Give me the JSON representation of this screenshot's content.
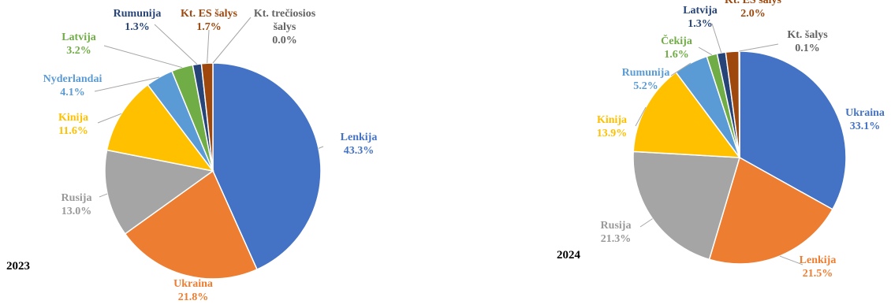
{
  "chart_data": [
    {
      "type": "pie",
      "title": "2023",
      "slices": [
        {
          "label": "Lenkija",
          "value": 43.3,
          "display": "43.3%",
          "color": "#4472C4"
        },
        {
          "label": "Ukraina",
          "value": 21.8,
          "display": "21.8%",
          "color": "#ED7D31"
        },
        {
          "label": "Rusija",
          "value": 13.0,
          "display": "13.0%",
          "color": "#A5A5A5"
        },
        {
          "label": "Kinija",
          "value": 11.6,
          "display": "11.6%",
          "color": "#FFC000"
        },
        {
          "label": "Nyderlandai",
          "value": 4.1,
          "display": "4.1%",
          "color": "#5B9BD5"
        },
        {
          "label": "Latvija",
          "value": 3.2,
          "display": "3.2%",
          "color": "#70AD47"
        },
        {
          "label": "Rumunija",
          "value": 1.3,
          "display": "1.3%",
          "color": "#264478"
        },
        {
          "label": "Kt. ES šalys",
          "value": 1.7,
          "display": "1.7%",
          "color": "#9E480E"
        },
        {
          "label": "Kt. trečiosios šalys",
          "value": 0.0,
          "display": "0.0%",
          "color": "#636363"
        }
      ]
    },
    {
      "type": "pie",
      "title": "2024",
      "slices": [
        {
          "label": "Ukraina",
          "value": 33.1,
          "display": "33.1%",
          "color": "#4472C4"
        },
        {
          "label": "Lenkija",
          "value": 21.5,
          "display": "21.5%",
          "color": "#ED7D31"
        },
        {
          "label": "Rusija",
          "value": 21.3,
          "display": "21.3%",
          "color": "#A5A5A5"
        },
        {
          "label": "Kinija",
          "value": 13.9,
          "display": "13.9%",
          "color": "#FFC000"
        },
        {
          "label": "Rumunija",
          "value": 5.2,
          "display": "5.2%",
          "color": "#5B9BD5"
        },
        {
          "label": "Čekija",
          "value": 1.6,
          "display": "1.6%",
          "color": "#70AD47"
        },
        {
          "label": "Latvija",
          "value": 1.3,
          "display": "1.3%",
          "color": "#264478"
        },
        {
          "label": "Kt. ES šalys",
          "value": 2.0,
          "display": "2.0%",
          "color": "#9E480E"
        },
        {
          "label": "Kt. šalys",
          "value": 0.1,
          "display": "0.1%",
          "color": "#636363"
        }
      ]
    }
  ]
}
